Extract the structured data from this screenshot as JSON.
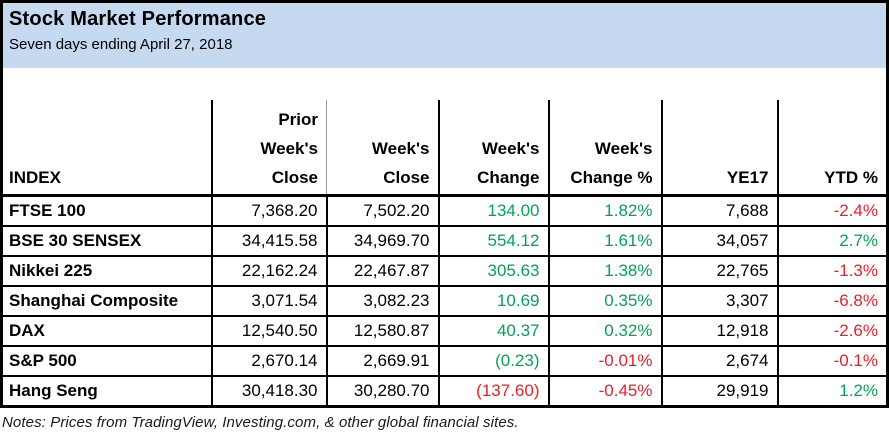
{
  "colors": {
    "green": "#00a551",
    "red": "#ee1c25",
    "black": "#000000",
    "header_bg": "#c5d9f1",
    "thin_border": "#9b9b9b"
  },
  "header": {
    "title": "Stock Market Performance",
    "subtitle": "Seven days ending April 27, 2018"
  },
  "table": {
    "columns": [
      {
        "key": "index",
        "align": "left",
        "label_lines": [
          "INDEX"
        ]
      },
      {
        "key": "prior-weeks-close",
        "align": "right",
        "label_lines": [
          "Prior",
          "Week's",
          "Close"
        ]
      },
      {
        "key": "weeks-close",
        "align": "right",
        "label_lines": [
          "Week's",
          "Close"
        ]
      },
      {
        "key": "weeks-change",
        "align": "right",
        "label_lines": [
          "Week's",
          "Change"
        ]
      },
      {
        "key": "weeks-change-pct",
        "align": "right",
        "label_lines": [
          "Week's",
          "Change %"
        ]
      },
      {
        "key": "ye17",
        "align": "right",
        "label_lines": [
          "YE17"
        ]
      },
      {
        "key": "ytd-pct",
        "align": "right",
        "label_lines": [
          "YTD %"
        ]
      }
    ],
    "rows": [
      {
        "index": "FTSE 100",
        "cells": [
          {
            "value": "7,368.20",
            "color": "black"
          },
          {
            "value": "7,502.20",
            "color": "black"
          },
          {
            "value": "134.00",
            "color": "green"
          },
          {
            "value": "1.82%",
            "color": "green"
          },
          {
            "value": "7,688",
            "color": "black"
          },
          {
            "value": "-2.4%",
            "color": "red"
          }
        ]
      },
      {
        "index": "BSE 30 SENSEX",
        "cells": [
          {
            "value": "34,415.58",
            "color": "black"
          },
          {
            "value": "34,969.70",
            "color": "black"
          },
          {
            "value": "554.12",
            "color": "green"
          },
          {
            "value": "1.61%",
            "color": "green"
          },
          {
            "value": "34,057",
            "color": "black"
          },
          {
            "value": "2.7%",
            "color": "green"
          }
        ]
      },
      {
        "index": "Nikkei 225",
        "cells": [
          {
            "value": "22,162.24",
            "color": "black"
          },
          {
            "value": "22,467.87",
            "color": "black"
          },
          {
            "value": "305.63",
            "color": "green"
          },
          {
            "value": "1.38%",
            "color": "green"
          },
          {
            "value": "22,765",
            "color": "black"
          },
          {
            "value": "-1.3%",
            "color": "red"
          }
        ]
      },
      {
        "index": "Shanghai Composite",
        "cells": [
          {
            "value": "3,071.54",
            "color": "black"
          },
          {
            "value": "3,082.23",
            "color": "black"
          },
          {
            "value": "10.69",
            "color": "green"
          },
          {
            "value": "0.35%",
            "color": "green"
          },
          {
            "value": "3,307",
            "color": "black"
          },
          {
            "value": "-6.8%",
            "color": "red"
          }
        ]
      },
      {
        "index": "DAX",
        "cells": [
          {
            "value": "12,540.50",
            "color": "black"
          },
          {
            "value": "12,580.87",
            "color": "black"
          },
          {
            "value": "40.37",
            "color": "green"
          },
          {
            "value": "0.32%",
            "color": "green"
          },
          {
            "value": "12,918",
            "color": "black"
          },
          {
            "value": "-2.6%",
            "color": "red"
          }
        ]
      },
      {
        "index": "S&P 500",
        "cells": [
          {
            "value": "2,670.14",
            "color": "black"
          },
          {
            "value": "2,669.91",
            "color": "black"
          },
          {
            "value": "(0.23)",
            "color": "green"
          },
          {
            "value": "-0.01%",
            "color": "red"
          },
          {
            "value": "2,674",
            "color": "black"
          },
          {
            "value": "-0.1%",
            "color": "red"
          }
        ]
      },
      {
        "index": "Hang Seng",
        "cells": [
          {
            "value": "30,418.30",
            "color": "black"
          },
          {
            "value": "30,280.70",
            "color": "black"
          },
          {
            "value": "(137.60)",
            "color": "red"
          },
          {
            "value": "-0.45%",
            "color": "red"
          },
          {
            "value": "29,919",
            "color": "black"
          },
          {
            "value": "1.2%",
            "color": "green"
          }
        ]
      }
    ]
  },
  "notes": {
    "text": "Notes: Prices from TradingView, Investing.com, & other global financial sites."
  },
  "chart_data": {
    "type": "table",
    "title": "Stock Market Performance",
    "subtitle": "Seven days ending April 27, 2018",
    "columns": [
      "INDEX",
      "Prior Week's Close",
      "Week's Close",
      "Week's Change",
      "Week's Change %",
      "YE17",
      "YTD %"
    ],
    "rows": [
      [
        "FTSE 100",
        7368.2,
        7502.2,
        134.0,
        1.82,
        7688,
        -2.4
      ],
      [
        "BSE 30 SENSEX",
        34415.58,
        34969.7,
        554.12,
        1.61,
        34057,
        2.7
      ],
      [
        "Nikkei 225",
        22162.24,
        22467.87,
        305.63,
        1.38,
        22765,
        -1.3
      ],
      [
        "Shanghai Composite",
        3071.54,
        3082.23,
        10.69,
        0.35,
        3307,
        -6.8
      ],
      [
        "DAX",
        12540.5,
        12580.87,
        40.37,
        0.32,
        12918,
        -2.6
      ],
      [
        "S&P 500",
        2670.14,
        2669.91,
        -0.23,
        -0.01,
        2674,
        -0.1
      ],
      [
        "Hang Seng",
        30418.3,
        30280.7,
        -137.6,
        -0.45,
        29919,
        1.2
      ]
    ],
    "units": {
      "weeks_change_pct": "%",
      "ytd_pct": "%"
    },
    "notes": "Notes: Prices from TradingView, Investing.com, & other global financial sites."
  }
}
